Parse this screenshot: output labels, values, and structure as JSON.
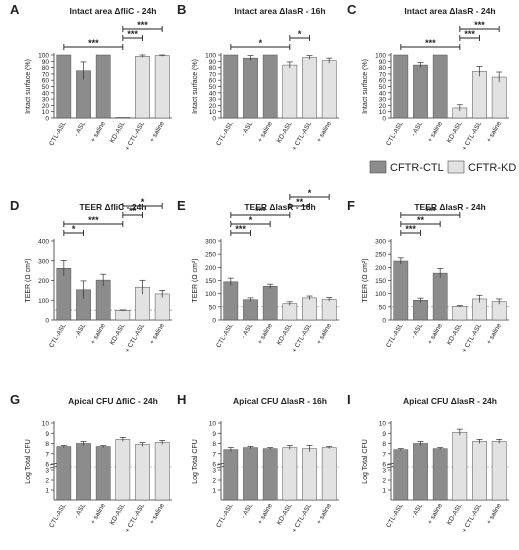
{
  "legend": {
    "items": [
      {
        "label": "CFTR-CTL",
        "color": "#8c8c8c"
      },
      {
        "label": "CFTR-KD",
        "color": "#e2e2e2"
      }
    ]
  },
  "colors": {
    "ctl": "#8c8c8c",
    "kd": "#e2e2e2",
    "stroke": "#4d4d4d",
    "dash": "#9a9a9a"
  },
  "chart_data": [
    {
      "id": "A",
      "type": "bar",
      "letter": "A",
      "title": "Intact area ΔfliC - 24h",
      "ylabel": "Intact surface (%)",
      "categories": [
        "CTL-ASL",
        "- ASL",
        "+ saline",
        "KD-ASL",
        "+ CTL-ASL",
        "+ saline"
      ],
      "values": [
        100,
        75,
        100,
        1,
        98,
        99
      ],
      "err": [
        0,
        14,
        0,
        0,
        2,
        1
      ],
      "ylim": [
        0,
        100
      ],
      "yticks": [
        0,
        10,
        20,
        30,
        40,
        50,
        60,
        70,
        80,
        90,
        100
      ],
      "sig": [
        {
          "from": 0,
          "to": 3,
          "label": "***",
          "level": 0
        },
        {
          "from": 3,
          "to": 4,
          "label": "***",
          "level": 1
        },
        {
          "from": 3,
          "to": 5,
          "label": "***",
          "level": 2
        }
      ]
    },
    {
      "id": "B",
      "type": "bar",
      "letter": "B",
      "title": "Intact area ΔlasR - 16h",
      "ylabel": "Intact surface (%)",
      "categories": [
        "CTL-ASL",
        "- ASL",
        "+ saline",
        "KD-ASL",
        "+ CTL-ASL",
        "+ saline"
      ],
      "values": [
        100,
        95,
        100,
        84,
        96,
        91
      ],
      "err": [
        0,
        4,
        0,
        5,
        3,
        4
      ],
      "ylim": [
        0,
        100
      ],
      "yticks": [
        0,
        10,
        20,
        30,
        40,
        50,
        60,
        70,
        80,
        90,
        100
      ],
      "sig": [
        {
          "from": 0,
          "to": 3,
          "label": "*",
          "level": 0
        },
        {
          "from": 3,
          "to": 4,
          "label": "*",
          "level": 1
        }
      ]
    },
    {
      "id": "C",
      "type": "bar",
      "letter": "C",
      "title": "Intact area ΔlasR - 24h",
      "ylabel": "Intact surface (%)",
      "categories": [
        "CTL-ASL",
        "- ASL",
        "+ saline",
        "KD-ASL",
        "+ CTL-ASL",
        "+ saline"
      ],
      "values": [
        100,
        84,
        100,
        16,
        74,
        65
      ],
      "err": [
        0,
        4,
        0,
        5,
        8,
        8
      ],
      "ylim": [
        0,
        100
      ],
      "yticks": [
        0,
        10,
        20,
        30,
        40,
        50,
        60,
        70,
        80,
        90,
        100
      ],
      "sig": [
        {
          "from": 0,
          "to": 3,
          "label": "***",
          "level": 0
        },
        {
          "from": 3,
          "to": 4,
          "label": "***",
          "level": 1
        },
        {
          "from": 3,
          "to": 5,
          "label": "***",
          "level": 2
        }
      ]
    },
    {
      "id": "D",
      "type": "bar",
      "letter": "D",
      "title": "TEER ΔfliC - 24h",
      "ylabel": "TEER (Ω cm²)",
      "categories": [
        "CTL-ASL",
        "- ASL",
        "+ saline",
        "KD-ASL",
        "+ CTL-ASL",
        "+ saline"
      ],
      "values": [
        262,
        153,
        202,
        48,
        166,
        132
      ],
      "err": [
        40,
        45,
        30,
        3,
        35,
        18
      ],
      "ylim": [
        0,
        400
      ],
      "yticks": [
        0,
        100,
        200,
        300,
        400
      ],
      "refline": 50,
      "sig": [
        {
          "from": 0,
          "to": 1,
          "label": "*",
          "level": 0
        },
        {
          "from": 0,
          "to": 3,
          "label": "***",
          "level": 1
        },
        {
          "from": 3,
          "to": 4,
          "label": "**",
          "level": 2
        },
        {
          "from": 3,
          "to": 5,
          "label": "*",
          "level": 3
        }
      ]
    },
    {
      "id": "E",
      "type": "bar",
      "letter": "E",
      "title": "TEER ΔlasR - 16h",
      "ylabel": "TEER (Ω cm²)",
      "categories": [
        "CTL-ASL",
        "- ASL",
        "+ saline",
        "KD-ASL",
        "+ CTL-ASL",
        "+ saline"
      ],
      "values": [
        145,
        77,
        128,
        62,
        84,
        78
      ],
      "err": [
        14,
        7,
        8,
        7,
        7,
        7
      ],
      "ylim": [
        0,
        300
      ],
      "yticks": [
        0,
        50,
        100,
        150,
        200,
        250,
        300
      ],
      "refline": 50,
      "sig": [
        {
          "from": 0,
          "to": 1,
          "label": "***",
          "level": 0
        },
        {
          "from": 0,
          "to": 2,
          "label": "*",
          "level": 1
        },
        {
          "from": 0,
          "to": 3,
          "label": "***",
          "level": 2
        },
        {
          "from": 3,
          "to": 4,
          "label": "**",
          "level": 3
        },
        {
          "from": 3,
          "to": 5,
          "label": "*",
          "level": 4
        }
      ]
    },
    {
      "id": "F",
      "type": "bar",
      "letter": "F",
      "title": "TEER ΔlasR - 24h",
      "ylabel": "TEER (Ω cm²)",
      "categories": [
        "CTL-ASL",
        "- ASL",
        "+ saline",
        "KD-ASL",
        "+ CTL-ASL",
        "+ saline"
      ],
      "values": [
        224,
        75,
        178,
        52,
        80,
        70
      ],
      "err": [
        12,
        8,
        18,
        3,
        14,
        10
      ],
      "ylim": [
        0,
        300
      ],
      "yticks": [
        0,
        50,
        100,
        150,
        200,
        250,
        300
      ],
      "refline": 50,
      "sig": [
        {
          "from": 0,
          "to": 1,
          "label": "***",
          "level": 0
        },
        {
          "from": 0,
          "to": 2,
          "label": "**",
          "level": 1
        },
        {
          "from": 0,
          "to": 3,
          "label": "***",
          "level": 2
        }
      ]
    },
    {
      "id": "G",
      "type": "bar",
      "letter": "G",
      "title": "Apical CFU ΔfliC - 24h",
      "ylabel": "Log Total CFU",
      "categories": [
        "CTL-ASL",
        "- ASL",
        "+ saline",
        "KD-ASL",
        "+ CTL-ASL",
        "+ saline"
      ],
      "values": [
        7.7,
        8.0,
        7.7,
        8.4,
        7.9,
        8.1
      ],
      "err": [
        0.1,
        0.2,
        0.1,
        0.2,
        0.2,
        0.2
      ],
      "ylim": [
        0,
        10
      ],
      "yticks": [
        1,
        2,
        3,
        6,
        7,
        8,
        9,
        10
      ],
      "axis_break": [
        3,
        6
      ],
      "sig": []
    },
    {
      "id": "H",
      "type": "bar",
      "letter": "H",
      "title": "Apical CFU ΔlasR - 16h",
      "ylabel": "Log Total CFU",
      "categories": [
        "CTL-ASL",
        "- ASL",
        "+ saline",
        "KD-ASL",
        "+ CTL-ASL",
        "+ saline"
      ],
      "values": [
        7.4,
        7.6,
        7.5,
        7.6,
        7.5,
        7.6
      ],
      "err": [
        0.2,
        0.1,
        0.1,
        0.2,
        0.3,
        0.1
      ],
      "ylim": [
        0,
        10
      ],
      "yticks": [
        1,
        2,
        3,
        6,
        7,
        8,
        9,
        10
      ],
      "axis_break": [
        3,
        6
      ],
      "sig": []
    },
    {
      "id": "I",
      "type": "bar",
      "letter": "I",
      "title": "Apical CFU ΔlasR - 24h",
      "ylabel": "Log Total CFU",
      "categories": [
        "CTL-ASL",
        "- ASL",
        "+ saline",
        "KD-ASL",
        "+ CTL-ASL",
        "+ saline"
      ],
      "values": [
        7.4,
        8.0,
        7.5,
        9.1,
        8.2,
        8.2
      ],
      "err": [
        0.1,
        0.2,
        0.1,
        0.3,
        0.2,
        0.2
      ],
      "ylim": [
        0,
        10
      ],
      "yticks": [
        1,
        2,
        3,
        6,
        7,
        8,
        9,
        10
      ],
      "axis_break": [
        3,
        6
      ],
      "sig": []
    }
  ]
}
